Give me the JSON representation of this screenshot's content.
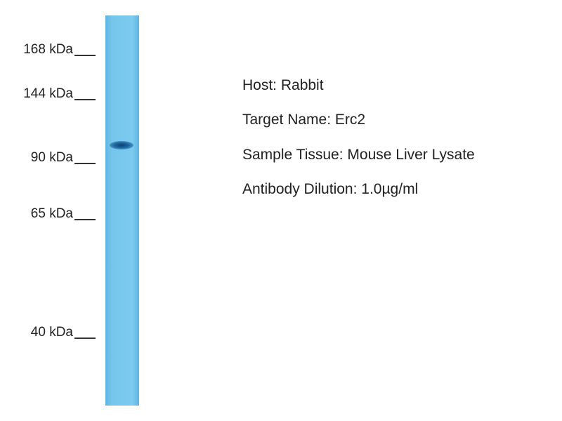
{
  "markers": [
    {
      "label": "168 kDa"
    },
    {
      "label": "144 kDa"
    },
    {
      "label": "90 kDa"
    },
    {
      "label": "65 kDa"
    },
    {
      "label": "40 kDa"
    }
  ],
  "info": [
    "Host: Rabbit",
    "Target Name: Erc2",
    "Sample Tissue: Mouse Liver Lysate",
    "Antibody Dilution: 1.0µg/ml"
  ],
  "colors": {
    "lane": "#74c4ea",
    "band": "#0d3f6c"
  }
}
